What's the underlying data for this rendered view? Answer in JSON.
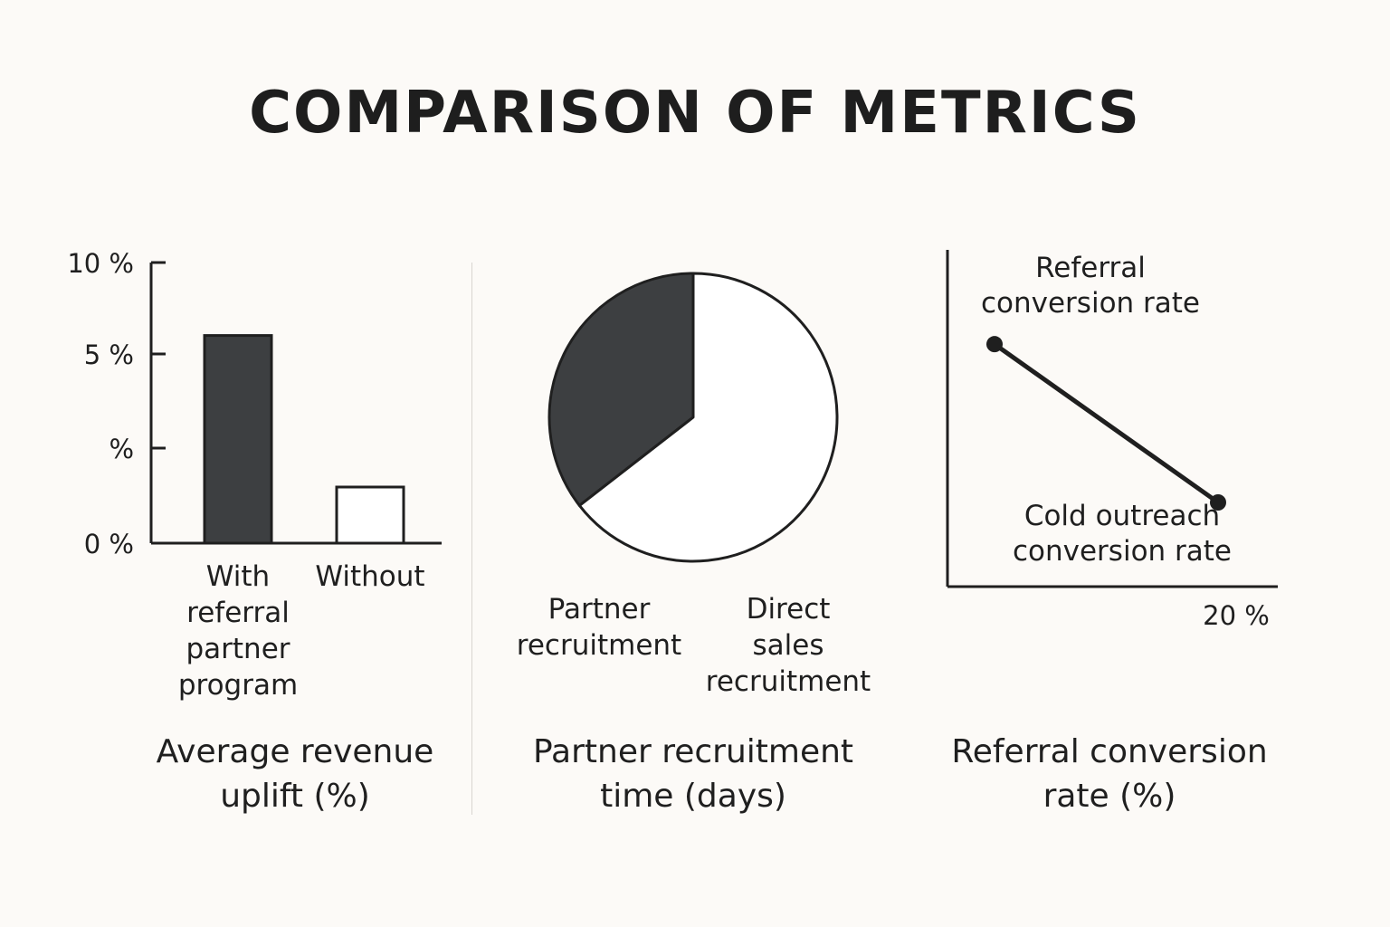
{
  "title": "COMPARISON OF METRICS",
  "colors": {
    "dark": "#3d3f41",
    "light": "#ffffff",
    "stroke": "#1f1f1f",
    "background": "#fcfaf7"
  },
  "chart_data": [
    {
      "type": "bar",
      "title": "",
      "caption_lines": [
        "Average revenue",
        "uplift (%)"
      ],
      "y_tick_labels": [
        "10 %",
        "5 %",
        "%",
        "0 %"
      ],
      "ylim": [
        0,
        10
      ],
      "categories": [
        {
          "label_lines": [
            "With",
            "referral",
            "partner",
            "program"
          ],
          "value": 7.4,
          "fill": "dark"
        },
        {
          "label_lines": [
            "Without"
          ],
          "value": 2.0,
          "fill": "light"
        }
      ]
    },
    {
      "type": "pie",
      "title": "",
      "caption_lines": [
        "Partner recruitment",
        "time (days)"
      ],
      "slices": [
        {
          "label_lines": [
            "Partner",
            "recruitment"
          ],
          "share": 0.355,
          "fill": "dark"
        },
        {
          "label_lines": [
            "Direct",
            "sales",
            "recruitment"
          ],
          "share": 0.645,
          "fill": "light"
        }
      ]
    },
    {
      "type": "line",
      "title": "",
      "caption_lines": [
        "Referral conversion",
        "rate (%)"
      ],
      "x_tick_label": "20 %",
      "points": [
        {
          "label_lines": [
            "Referral",
            "conversion rate"
          ],
          "y_fraction": 0.72
        },
        {
          "label_lines": [
            "Cold outreach",
            "conversion rate"
          ],
          "y_fraction": 0.25
        }
      ]
    }
  ]
}
